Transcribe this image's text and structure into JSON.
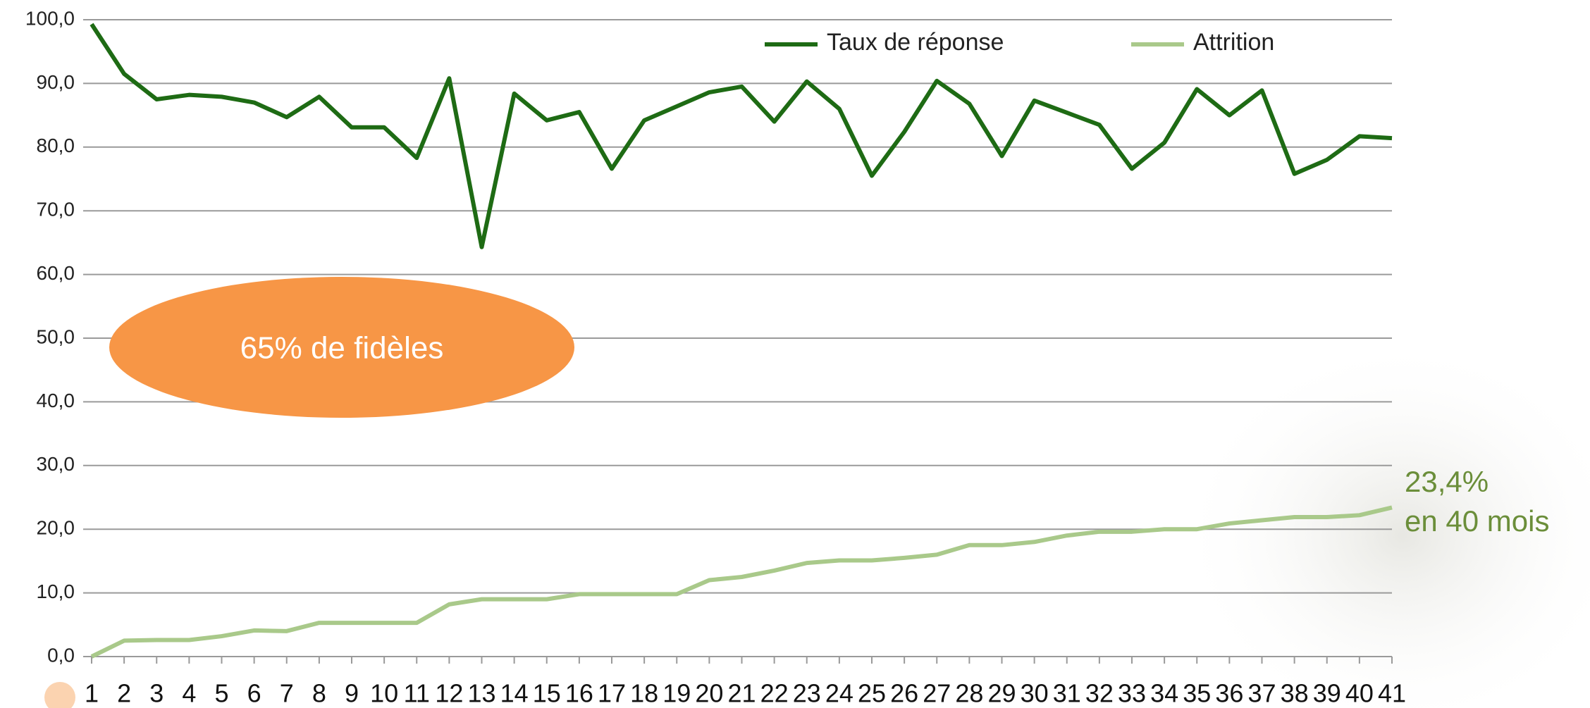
{
  "chart_data": {
    "type": "line",
    "categories": [
      "1",
      "2",
      "3",
      "4",
      "5",
      "6",
      "7",
      "8",
      "9",
      "10",
      "11",
      "12",
      "13",
      "14",
      "15",
      "16",
      "17",
      "18",
      "19",
      "20",
      "21",
      "22",
      "23",
      "24",
      "25",
      "26",
      "27",
      "28",
      "29",
      "30",
      "31",
      "32",
      "33",
      "34",
      "35",
      "36",
      "37",
      "38",
      "39",
      "40",
      "41"
    ],
    "series": [
      {
        "name": "Taux de réponse",
        "color": "#1e6b14",
        "values": [
          99.3,
          91.5,
          87.5,
          88.2,
          87.9,
          87.0,
          84.7,
          87.9,
          83.1,
          83.1,
          78.3,
          90.8,
          64.3,
          88.4,
          84.2,
          85.5,
          76.6,
          84.2,
          86.4,
          88.6,
          89.5,
          84.0,
          90.3,
          86.0,
          75.5,
          82.4,
          90.4,
          86.8,
          78.6,
          87.3,
          85.4,
          83.5,
          76.6,
          80.7,
          89.1,
          85.0,
          88.9,
          75.8,
          78.0,
          81.7,
          81.4
        ]
      },
      {
        "name": "Attrition",
        "color": "#a9c98a",
        "values": [
          0,
          2.5,
          2.6,
          2.6,
          3.2,
          4.1,
          4.0,
          5.3,
          5.3,
          5.3,
          5.3,
          8.2,
          9.0,
          9.0,
          9.0,
          9.8,
          9.8,
          9.8,
          9.8,
          12.0,
          12.5,
          13.5,
          14.7,
          15.1,
          15.1,
          15.5,
          16.0,
          17.5,
          17.5,
          18.0,
          19.0,
          19.6,
          19.6,
          20.0,
          20.0,
          20.9,
          21.4,
          21.9,
          21.9,
          22.2,
          23.4
        ]
      }
    ],
    "ylim": [
      0,
      100
    ],
    "yticks": [
      {
        "value": 0,
        "label": "0,0"
      },
      {
        "value": 10,
        "label": "10,0"
      },
      {
        "value": 20,
        "label": "20,0"
      },
      {
        "value": 30,
        "label": "30,0"
      },
      {
        "value": 40,
        "label": "40,0"
      },
      {
        "value": 50,
        "label": "50,0"
      },
      {
        "value": 60,
        "label": "60,0"
      },
      {
        "value": 70,
        "label": "70,0"
      },
      {
        "value": 80,
        "label": "80,0"
      },
      {
        "value": 90,
        "label": "90,0"
      },
      {
        "value": 100,
        "label": "100,0"
      }
    ],
    "grid": true,
    "legend": "top",
    "annotations": [
      "65% de fidèles",
      "23,4%",
      "en 40 mois"
    ]
  }
}
